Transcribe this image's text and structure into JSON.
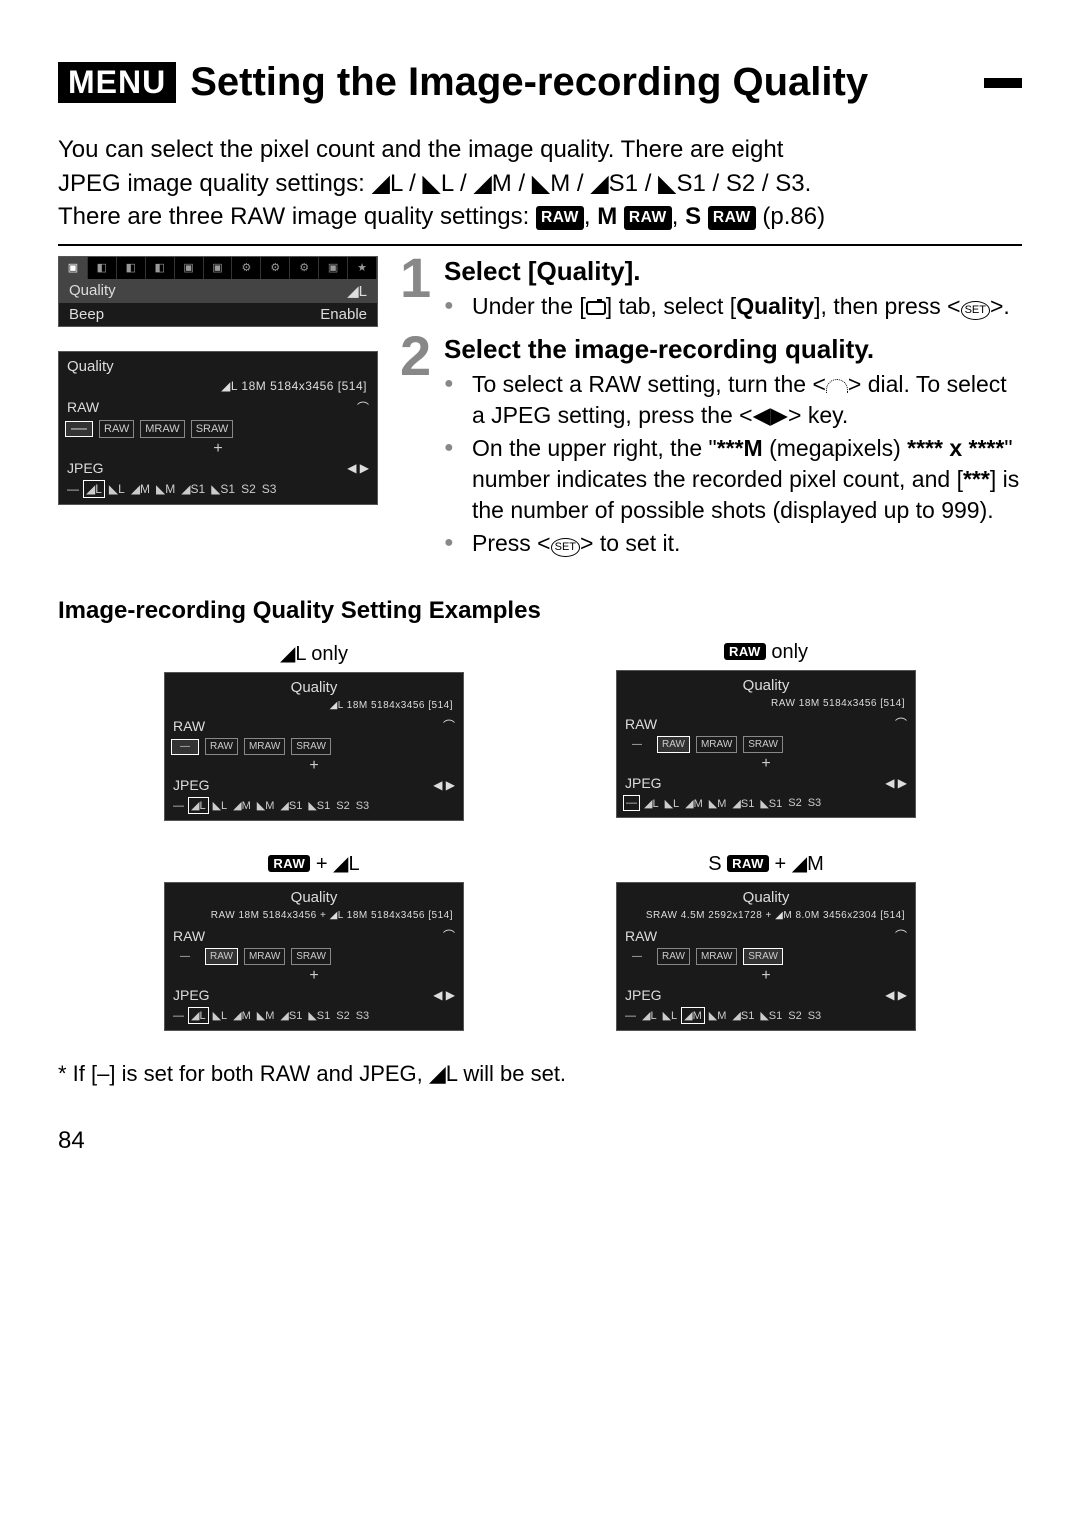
{
  "header": {
    "menu_badge": "MENU",
    "title": "Setting the Image-recording Quality"
  },
  "intro": {
    "line1": "You can select the pixel count and the image quality. There are eight",
    "line2_prefix": "JPEG image quality settings: ",
    "jpeg_settings": "◢L / ◣L / ◢M / ◣M / ◢S1 / ◣S1 / S2 / S3.",
    "line3_prefix": "There are three RAW image quality settings: ",
    "raw_badges": [
      "RAW",
      "M RAW",
      "S RAW"
    ],
    "page_ref": "(p.86)"
  },
  "menu_panel": {
    "tabs": [
      "▣",
      "◧",
      "◧",
      "◧",
      "▣",
      "▣",
      "⚙",
      "⚙",
      "⚙",
      "▣",
      "★"
    ],
    "selected_tab": 0,
    "rows": [
      {
        "label": "Quality",
        "value": "◢L",
        "selected": true
      },
      {
        "label": "Beep",
        "value": "Enable",
        "selected": false
      }
    ]
  },
  "quality_panel_main": {
    "title": "Quality",
    "status": "◢L  18M 5184x3456 [514]",
    "raw_label": "RAW",
    "raw_options": [
      "—",
      "RAW",
      "MRAW",
      "SRAW"
    ],
    "raw_selected": 0,
    "jpeg_label": "JPEG",
    "jpeg_options": [
      "—",
      "◢L",
      "◣L",
      "◢M",
      "◣M",
      "◢S1",
      "◣S1",
      "S2",
      "S3"
    ],
    "jpeg_selected": 1
  },
  "steps": [
    {
      "num": "1",
      "title": "Select [Quality].",
      "bullets": [
        "Under the [📷] tab, select [Quality], then press <SET>."
      ]
    },
    {
      "num": "2",
      "title": "Select the image-recording quality.",
      "bullets": [
        "To select a RAW setting, turn the <⌒> dial. To select a JPEG setting, press the <◀▶> key.",
        "On the upper right, the \"***M (megapixels) **** x ****\" number indicates the recorded pixel count, and [***] is the number of possible shots (displayed up to 999).",
        "Press <SET> to set it."
      ]
    }
  ],
  "examples": {
    "heading": "Image-recording Quality Setting Examples",
    "items": [
      {
        "caption": "◢L only",
        "status": "◢L  18M 5184x3456 [514]",
        "raw_selected": 0,
        "jpeg_selected": 1
      },
      {
        "caption": "RAW only",
        "status": "RAW  18M 5184x3456 [514]",
        "raw_selected": 1,
        "jpeg_selected": 0
      },
      {
        "caption": "RAW + ◢L",
        "status": "RAW 18M 5184x3456 + ◢L 18M 5184x3456 [514]",
        "raw_selected": 1,
        "jpeg_selected": 1
      },
      {
        "caption": "S RAW + ◢M",
        "status": "SRAW 4.5M 2592x1728 + ◢M 8.0M 3456x2304 [514]",
        "raw_selected": 3,
        "jpeg_selected": 3
      }
    ]
  },
  "footnote": "* If [–] is set for both RAW and JPEG, ◢L will be set.",
  "page_number": "84",
  "shared": {
    "raw_options": [
      "—",
      "RAW",
      "MRAW",
      "SRAW"
    ],
    "jpeg_options": [
      "—",
      "◢L",
      "◣L",
      "◢M",
      "◣M",
      "◢S1",
      "◣S1",
      "S2",
      "S3"
    ],
    "quality_label": "Quality",
    "raw_label": "RAW",
    "jpeg_label": "JPEG"
  }
}
